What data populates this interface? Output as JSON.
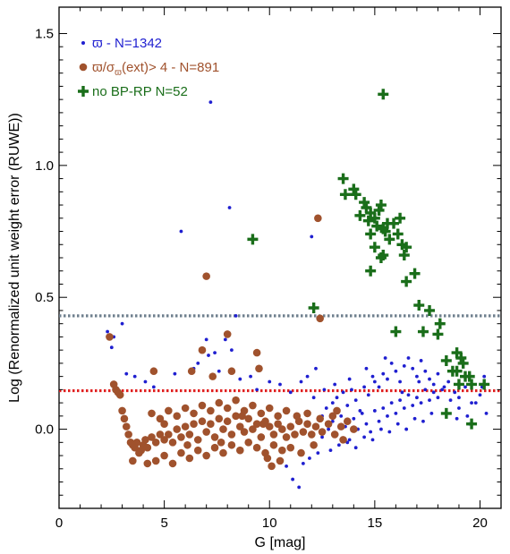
{
  "chart_data": {
    "type": "scatter",
    "xlabel": "G [mag]",
    "ylabel": "Log (Renormalized unit weight error (RUWE))",
    "xlim": [
      0,
      21
    ],
    "ylim": [
      -0.3,
      1.6
    ],
    "x_ticks": [
      0,
      5,
      10,
      15,
      20
    ],
    "y_ticks": [
      0.0,
      0.5,
      1.0,
      1.5
    ],
    "x_tick_labels": [
      "0",
      "5",
      "10",
      "15",
      "20"
    ],
    "y_tick_labels": [
      "0.0",
      "0.5",
      "1.0",
      "1.5"
    ],
    "grid": false,
    "legend_position": "top-left",
    "reference_lines": [
      {
        "y": 0.43,
        "color": "#6e7f8d",
        "style": "dotted"
      },
      {
        "y": 0.146,
        "color": "#e02020",
        "style": "dotted"
      }
    ],
    "series": [
      {
        "legend_symbol": "ϖ",
        "legend_text": " - N=1342",
        "color": "#1f1fd0",
        "marker": "small-dot",
        "points": [
          [
            2.3,
            0.37
          ],
          [
            2.5,
            0.31
          ],
          [
            2.6,
            0.35
          ],
          [
            3.0,
            0.4
          ],
          [
            3.2,
            0.21
          ],
          [
            3.6,
            0.2
          ],
          [
            4.1,
            0.18
          ],
          [
            4.5,
            0.16
          ],
          [
            5.5,
            0.21
          ],
          [
            5.8,
            0.75
          ],
          [
            6.4,
            0.23
          ],
          [
            6.6,
            0.25
          ],
          [
            7.0,
            0.34
          ],
          [
            7.1,
            0.28
          ],
          [
            7.2,
            1.24
          ],
          [
            7.4,
            0.29
          ],
          [
            7.6,
            0.22
          ],
          [
            7.9,
            0.34
          ],
          [
            8.1,
            0.84
          ],
          [
            8.2,
            0.3
          ],
          [
            8.4,
            0.43
          ],
          [
            8.6,
            0.19
          ],
          [
            9.1,
            0.2
          ],
          [
            9.4,
            0.15
          ],
          [
            10.0,
            0.18
          ],
          [
            10.5,
            0.17
          ],
          [
            11.0,
            0.14
          ],
          [
            11.5,
            0.18
          ],
          [
            11.8,
            0.2
          ],
          [
            12.0,
            0.73
          ],
          [
            12.3,
            0.42
          ],
          [
            12.2,
            0.23
          ],
          [
            12.1,
            0.12
          ],
          [
            12.5,
            0.05
          ],
          [
            12.7,
            0.08
          ],
          [
            13.0,
            0.1
          ],
          [
            13.2,
            0.12
          ],
          [
            13.5,
            0.14
          ],
          [
            13.7,
            0.09
          ],
          [
            13.9,
            0.15
          ],
          [
            14.1,
            0.11
          ],
          [
            14.3,
            0.07
          ],
          [
            14.5,
            0.16
          ],
          [
            14.7,
            0.13
          ],
          [
            14.9,
            0.2
          ],
          [
            15.0,
            0.18
          ],
          [
            15.2,
            0.16
          ],
          [
            15.4,
            0.21
          ],
          [
            15.6,
            0.19
          ],
          [
            15.8,
            0.25
          ],
          [
            16.0,
            0.22
          ],
          [
            16.2,
            0.18
          ],
          [
            16.4,
            0.24
          ],
          [
            16.6,
            0.27
          ],
          [
            16.8,
            0.23
          ],
          [
            17.0,
            0.2
          ],
          [
            17.2,
            0.26
          ],
          [
            17.4,
            0.22
          ],
          [
            17.6,
            0.19
          ],
          [
            17.8,
            0.17
          ],
          [
            18.0,
            0.21
          ],
          [
            18.2,
            0.15
          ],
          [
            18.5,
            0.18
          ],
          [
            18.8,
            0.14
          ],
          [
            19.0,
            0.12
          ],
          [
            19.3,
            0.16
          ],
          [
            19.6,
            0.1
          ],
          [
            20.0,
            0.13
          ],
          [
            20.2,
            0.2
          ],
          [
            12.5,
            -0.03
          ],
          [
            12.8,
            0.0
          ],
          [
            13.0,
            0.03
          ],
          [
            13.2,
            -0.02
          ],
          [
            13.4,
            0.05
          ],
          [
            13.6,
            0.01
          ],
          [
            13.8,
            -0.04
          ],
          [
            14.0,
            0.04
          ],
          [
            14.2,
            0.0
          ],
          [
            14.4,
            0.06
          ],
          [
            14.6,
            0.02
          ],
          [
            14.8,
            -0.01
          ],
          [
            15.0,
            0.07
          ],
          [
            15.2,
            0.03
          ],
          [
            15.4,
            0.08
          ],
          [
            15.6,
            0.05
          ],
          [
            15.8,
            0.1
          ],
          [
            16.0,
            0.06
          ],
          [
            16.2,
            0.11
          ],
          [
            16.4,
            0.08
          ],
          [
            16.6,
            0.13
          ],
          [
            16.8,
            0.09
          ],
          [
            17.0,
            0.12
          ],
          [
            17.2,
            0.1
          ],
          [
            17.4,
            0.15
          ],
          [
            17.6,
            0.11
          ],
          [
            17.8,
            0.14
          ],
          [
            18.0,
            0.12
          ],
          [
            18.3,
            0.16
          ],
          [
            18.6,
            0.11
          ],
          [
            19.0,
            0.08
          ],
          [
            19.4,
            0.05
          ],
          [
            19.8,
            0.1
          ],
          [
            20.1,
            0.16
          ],
          [
            12.9,
            -0.08
          ],
          [
            13.3,
            -0.06
          ],
          [
            13.7,
            -0.05
          ],
          [
            14.1,
            -0.07
          ],
          [
            14.5,
            -0.03
          ],
          [
            14.9,
            -0.04
          ],
          [
            15.3,
            0.0
          ],
          [
            15.7,
            -0.01
          ],
          [
            16.1,
            0.02
          ],
          [
            16.5,
            0.0
          ],
          [
            16.9,
            0.04
          ],
          [
            17.3,
            0.03
          ],
          [
            17.7,
            0.06
          ],
          [
            11.1,
            -0.19
          ],
          [
            11.4,
            -0.22
          ],
          [
            10.8,
            -0.14
          ],
          [
            11.9,
            -0.11
          ],
          [
            12.3,
            -0.09
          ],
          [
            11.6,
            -0.13
          ],
          [
            12.6,
            0.15
          ],
          [
            13.1,
            0.17
          ],
          [
            13.8,
            0.19
          ],
          [
            14.6,
            0.23
          ],
          [
            15.5,
            0.27
          ],
          [
            16.3,
            0.14
          ],
          [
            17.1,
            0.18
          ],
          [
            18.9,
            0.04
          ],
          [
            19.5,
            0.02
          ],
          [
            20.3,
            0.06
          ]
        ]
      },
      {
        "legend_symbol": "ϖ/σ",
        "legend_sub": "ϖ",
        "legend_text": "(ext)> 4  - N=891",
        "color": "#a0522d",
        "marker": "large-dot",
        "points": [
          [
            2.4,
            0.35
          ],
          [
            2.6,
            0.17
          ],
          [
            2.7,
            0.15
          ],
          [
            2.8,
            0.14
          ],
          [
            3.0,
            0.07
          ],
          [
            3.1,
            0.04
          ],
          [
            3.2,
            0.01
          ],
          [
            3.3,
            -0.02
          ],
          [
            3.4,
            -0.05
          ],
          [
            3.5,
            -0.06
          ],
          [
            3.6,
            -0.07
          ],
          [
            3.7,
            -0.05
          ],
          [
            3.8,
            -0.09
          ],
          [
            3.9,
            -0.08
          ],
          [
            4.0,
            -0.06
          ],
          [
            4.1,
            -0.04
          ],
          [
            4.2,
            -0.07
          ],
          [
            4.4,
            -0.03
          ],
          [
            4.6,
            -0.05
          ],
          [
            4.8,
            -0.02
          ],
          [
            5.0,
            -0.04
          ],
          [
            5.2,
            -0.02
          ],
          [
            5.4,
            -0.05
          ],
          [
            5.6,
            0.0
          ],
          [
            5.8,
            -0.03
          ],
          [
            6.0,
            0.01
          ],
          [
            6.2,
            -0.02
          ],
          [
            6.4,
            0.02
          ],
          [
            6.6,
            -0.04
          ],
          [
            6.8,
            0.03
          ],
          [
            7.0,
            -0.01
          ],
          [
            7.2,
            0.02
          ],
          [
            7.4,
            -0.03
          ],
          [
            7.6,
            0.04
          ],
          [
            7.8,
            0.0
          ],
          [
            8.0,
            0.03
          ],
          [
            8.2,
            -0.02
          ],
          [
            8.4,
            0.05
          ],
          [
            8.6,
            0.01
          ],
          [
            8.8,
            -0.01
          ],
          [
            9.0,
            0.04
          ],
          [
            9.2,
            0.0
          ],
          [
            9.4,
            0.02
          ],
          [
            9.6,
            -0.03
          ],
          [
            9.8,
            0.03
          ],
          [
            10.0,
            0.01
          ],
          [
            10.2,
            -0.02
          ],
          [
            10.4,
            0.02
          ],
          [
            10.6,
            0.0
          ],
          [
            10.8,
            -0.03
          ],
          [
            11.0,
            0.01
          ],
          [
            11.2,
            -0.02
          ],
          [
            11.4,
            0.03
          ],
          [
            11.6,
            -0.01
          ],
          [
            11.8,
            0.02
          ],
          [
            12.0,
            -0.02
          ],
          [
            12.2,
            0.01
          ],
          [
            12.5,
            -0.01
          ],
          [
            12.8,
            0.02
          ],
          [
            13.1,
            -0.02
          ],
          [
            13.4,
            0.01
          ],
          [
            13.7,
            0.03
          ],
          [
            14.0,
            0.0
          ],
          [
            4.6,
            -0.12
          ],
          [
            5.0,
            -0.1
          ],
          [
            5.4,
            -0.13
          ],
          [
            5.8,
            -0.09
          ],
          [
            6.2,
            -0.11
          ],
          [
            6.6,
            -0.08
          ],
          [
            7.0,
            -0.1
          ],
          [
            7.4,
            -0.07
          ],
          [
            7.8,
            -0.09
          ],
          [
            8.2,
            -0.06
          ],
          [
            8.6,
            -0.08
          ],
          [
            9.0,
            -0.05
          ],
          [
            9.4,
            -0.07
          ],
          [
            9.8,
            -0.09
          ],
          [
            10.2,
            -0.06
          ],
          [
            10.6,
            -0.08
          ],
          [
            11.0,
            -0.07
          ],
          [
            11.5,
            -0.09
          ],
          [
            12.1,
            -0.06
          ],
          [
            4.4,
            0.06
          ],
          [
            4.8,
            0.04
          ],
          [
            5.2,
            0.07
          ],
          [
            5.6,
            0.05
          ],
          [
            6.0,
            0.08
          ],
          [
            6.4,
            0.06
          ],
          [
            6.8,
            0.09
          ],
          [
            7.2,
            0.07
          ],
          [
            7.6,
            0.1
          ],
          [
            8.0,
            0.08
          ],
          [
            8.4,
            0.11
          ],
          [
            8.8,
            0.07
          ],
          [
            9.2,
            0.09
          ],
          [
            9.6,
            0.06
          ],
          [
            10.0,
            0.08
          ],
          [
            10.4,
            0.05
          ],
          [
            10.8,
            0.07
          ],
          [
            11.3,
            0.05
          ],
          [
            11.8,
            0.06
          ],
          [
            12.4,
            0.04
          ],
          [
            13.0,
            0.05
          ],
          [
            7.0,
            0.58
          ],
          [
            6.8,
            0.3
          ],
          [
            6.3,
            0.22
          ],
          [
            4.5,
            0.22
          ],
          [
            2.9,
            0.13
          ],
          [
            8.2,
            0.22
          ],
          [
            8.0,
            0.36
          ],
          [
            9.4,
            0.29
          ],
          [
            9.5,
            0.23
          ],
          [
            7.3,
            0.2
          ],
          [
            10.1,
            -0.14
          ],
          [
            10.5,
            -0.12
          ],
          [
            9.9,
            -0.11
          ],
          [
            3.5,
            -0.12
          ],
          [
            4.2,
            -0.13
          ],
          [
            12.3,
            0.8
          ],
          [
            12.4,
            0.42
          ],
          [
            13.2,
            0.07
          ],
          [
            13.5,
            -0.04
          ],
          [
            5.0,
            0.02
          ],
          [
            6.1,
            -0.06
          ],
          [
            7.7,
            -0.05
          ],
          [
            8.7,
            0.05
          ],
          [
            9.7,
            0.02
          ]
        ]
      },
      {
        "legend_symbol": "",
        "legend_text": "no BP-RP  N=52",
        "color": "#1a6e1a",
        "marker": "plus",
        "points": [
          [
            9.2,
            0.72
          ],
          [
            12.1,
            0.46
          ],
          [
            13.5,
            0.95
          ],
          [
            13.6,
            0.89
          ],
          [
            14.0,
            0.91
          ],
          [
            14.1,
            0.89
          ],
          [
            14.3,
            0.81
          ],
          [
            14.5,
            0.86
          ],
          [
            14.6,
            0.84
          ],
          [
            14.7,
            0.79
          ],
          [
            14.8,
            0.82
          ],
          [
            15.0,
            0.8
          ],
          [
            15.1,
            0.77
          ],
          [
            15.2,
            0.83
          ],
          [
            15.3,
            0.85
          ],
          [
            15.4,
            0.76
          ],
          [
            15.5,
            0.75
          ],
          [
            15.6,
            0.78
          ],
          [
            15.7,
            0.72
          ],
          [
            15.9,
            0.78
          ],
          [
            16.1,
            0.74
          ],
          [
            16.3,
            0.7
          ],
          [
            16.4,
            0.66
          ],
          [
            16.5,
            0.69
          ],
          [
            15.3,
            0.65
          ],
          [
            15.4,
            0.66
          ],
          [
            14.8,
            0.6
          ],
          [
            16.5,
            0.56
          ],
          [
            16.9,
            0.59
          ],
          [
            17.1,
            0.47
          ],
          [
            17.6,
            0.45
          ],
          [
            16.0,
            0.37
          ],
          [
            17.3,
            0.37
          ],
          [
            18.1,
            0.4
          ],
          [
            18.0,
            0.36
          ],
          [
            18.4,
            0.26
          ],
          [
            18.7,
            0.22
          ],
          [
            18.9,
            0.29
          ],
          [
            19.1,
            0.27
          ],
          [
            19.2,
            0.25
          ],
          [
            19.0,
            0.17
          ],
          [
            19.5,
            0.2
          ],
          [
            19.6,
            0.17
          ],
          [
            20.2,
            0.17
          ],
          [
            18.4,
            0.06
          ],
          [
            19.6,
            0.02
          ],
          [
            15.4,
            1.27
          ],
          [
            14.8,
            0.74
          ],
          [
            15.0,
            0.69
          ],
          [
            16.2,
            0.8
          ],
          [
            18.9,
            0.22
          ],
          [
            19.3,
            0.2
          ]
        ]
      }
    ]
  }
}
